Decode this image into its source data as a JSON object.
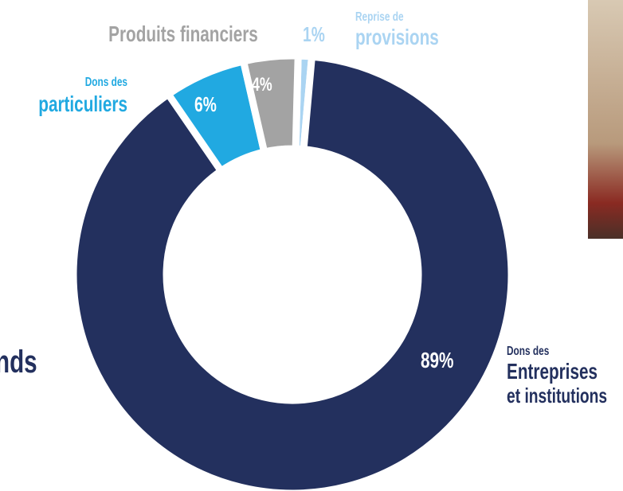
{
  "chart_data": {
    "type": "donut",
    "cropped_text": "nds",
    "series": [
      {
        "label_lines": [
          "Reprise de",
          "provisions"
        ],
        "color": "#aad4f2",
        "values": [
          1
        ],
        "value_labels": [
          "1%"
        ]
      },
      {
        "label_lines": [
          "Dons des",
          "Entreprises",
          "et institutions"
        ],
        "color": "#23305e",
        "values": [
          89
        ],
        "value_labels": [
          "89%"
        ]
      },
      {
        "label_lines": [
          "Dons des",
          "particuliers"
        ],
        "color": "#21a9e1",
        "values": [
          6
        ],
        "value_labels": [
          "6%"
        ]
      },
      {
        "label_lines": [
          "Produits financiers"
        ],
        "color": "#a3a3a3",
        "values": [
          4
        ],
        "value_labels": [
          "4%"
        ]
      }
    ]
  }
}
